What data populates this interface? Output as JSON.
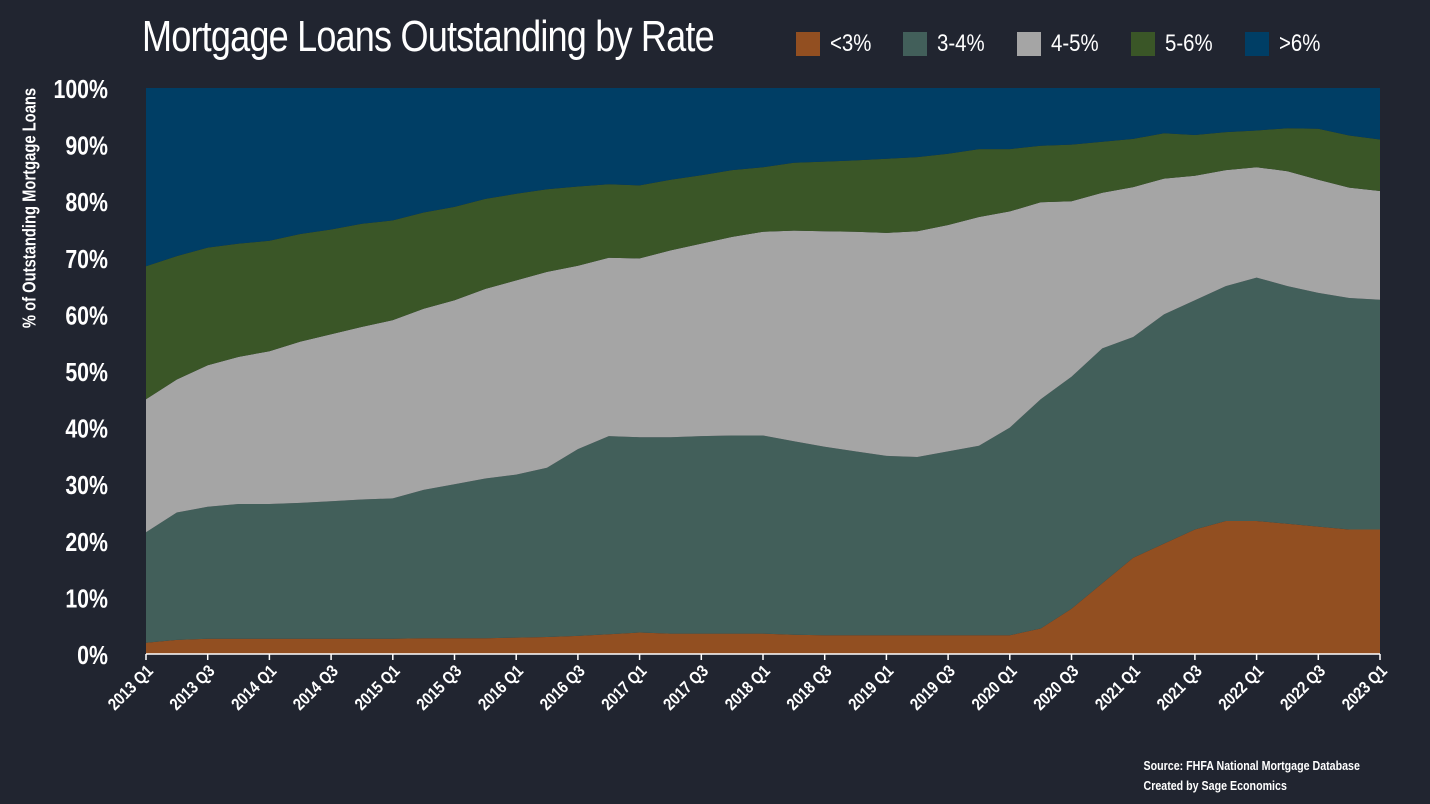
{
  "chart_data": {
    "type": "area",
    "stacked": true,
    "title": "Mortgage Loans Outstanding by Rate",
    "ylabel": "% of Outstanding Mortgage Loans",
    "xlabel": "",
    "ylim": [
      0,
      100
    ],
    "yticks": [
      "0%",
      "10%",
      "20%",
      "30%",
      "40%",
      "50%",
      "60%",
      "70%",
      "80%",
      "90%",
      "100%"
    ],
    "legend_position": "top-right",
    "grid": false,
    "x_tick_labels": [
      "2013 Q1",
      "2013 Q3",
      "2014 Q1",
      "2014 Q3",
      "2015 Q1",
      "2015 Q3",
      "2016 Q1",
      "2016 Q3",
      "2017 Q1",
      "2017 Q3",
      "2018 Q1",
      "2018 Q3",
      "2019 Q1",
      "2019 Q3",
      "2020 Q1",
      "2020 Q3",
      "2021 Q1",
      "2021 Q3",
      "2022 Q1",
      "2022 Q3",
      "2023 Q1"
    ],
    "x": [
      "2013 Q1",
      "2013 Q2",
      "2013 Q3",
      "2013 Q4",
      "2014 Q1",
      "2014 Q2",
      "2014 Q3",
      "2014 Q4",
      "2015 Q1",
      "2015 Q2",
      "2015 Q3",
      "2015 Q4",
      "2016 Q1",
      "2016 Q2",
      "2016 Q3",
      "2016 Q4",
      "2017 Q1",
      "2017 Q2",
      "2017 Q3",
      "2017 Q4",
      "2018 Q1",
      "2018 Q2",
      "2018 Q3",
      "2018 Q4",
      "2019 Q1",
      "2019 Q2",
      "2019 Q3",
      "2019 Q4",
      "2020 Q1",
      "2020 Q2",
      "2020 Q3",
      "2020 Q4",
      "2021 Q1",
      "2021 Q2",
      "2021 Q3",
      "2021 Q4",
      "2022 Q1",
      "2022 Q2",
      "2022 Q3",
      "2022 Q4",
      "2023 Q1"
    ],
    "series": [
      {
        "name": "<3%",
        "color": "#924f21",
        "values": [
          2,
          2.5,
          2.7,
          2.7,
          2.7,
          2.7,
          2.7,
          2.7,
          2.7,
          2.8,
          2.8,
          2.8,
          2.9,
          3.0,
          3.2,
          3.5,
          3.8,
          3.6,
          3.6,
          3.6,
          3.6,
          3.4,
          3.3,
          3.3,
          3.3,
          3.3,
          3.3,
          3.3,
          3.3,
          4.5,
          8,
          12.5,
          17,
          19.5,
          22,
          23.5,
          23.5,
          23,
          22.5,
          22,
          22
        ]
      },
      {
        "name": "3-4%",
        "color": "#425f5a",
        "values": [
          19.5,
          22.5,
          23.3,
          23.8,
          23.8,
          24.0,
          24.3,
          24.6,
          24.8,
          26.2,
          27.2,
          28.2,
          28.8,
          29.9,
          33.0,
          35.0,
          34.5,
          34.7,
          34.9,
          35.0,
          35.0,
          34.2,
          33.3,
          32.5,
          31.7,
          31.5,
          32.5,
          33.5,
          36.7,
          40.5,
          41.0,
          41.5,
          39.0,
          40.5,
          40.5,
          41.5,
          43.0,
          42.0,
          41.3,
          40.9,
          40.6
        ]
      },
      {
        "name": "4-5%",
        "color": "#a5a5a5",
        "values": [
          23.5,
          23.5,
          25.0,
          26.0,
          27.0,
          28.5,
          29.5,
          30.5,
          31.5,
          32.0,
          32.5,
          33.5,
          34.3,
          34.6,
          32.4,
          31.5,
          31.6,
          33.0,
          34.0,
          35.1,
          36.0,
          37.2,
          38.1,
          38.8,
          39.4,
          39.9,
          40.0,
          40.4,
          38.2,
          34.8,
          31.0,
          27.5,
          26.5,
          24.0,
          22.0,
          20.5,
          19.5,
          20.3,
          20.0,
          19.5,
          19.2
        ]
      },
      {
        "name": "5-6%",
        "color": "#3a5627",
        "values": [
          23.5,
          21.8,
          20.8,
          20.0,
          19.5,
          19.0,
          18.5,
          18.2,
          17.6,
          17.0,
          16.5,
          15.9,
          15.3,
          14.6,
          14.0,
          13.0,
          12.9,
          12.5,
          12.1,
          11.8,
          11.4,
          12.0,
          12.3,
          12.6,
          13.1,
          13.1,
          12.6,
          12.0,
          11.0,
          10.0,
          10.0,
          9.0,
          8.5,
          8.0,
          7.2,
          6.7,
          6.5,
          7.6,
          9.0,
          9.2,
          9.1
        ]
      },
      {
        "name": ">6%",
        "color": "#003e65",
        "values": [
          31.5,
          29.7,
          28.2,
          27.5,
          27.0,
          25.8,
          25.0,
          24.0,
          23.4,
          22.0,
          21.0,
          19.6,
          18.7,
          17.9,
          17.4,
          17.0,
          17.2,
          16.2,
          15.4,
          14.5,
          14.0,
          13.2,
          13.0,
          12.8,
          12.5,
          12.2,
          11.6,
          10.8,
          10.8,
          10.2,
          10.0,
          9.5,
          9.0,
          8.0,
          8.3,
          7.8,
          7.5,
          7.1,
          7.2,
          8.4,
          9.1
        ]
      }
    ],
    "source_lines": [
      "Source: FHFA National Mortgage Database",
      "Created by Sage Economics"
    ]
  }
}
